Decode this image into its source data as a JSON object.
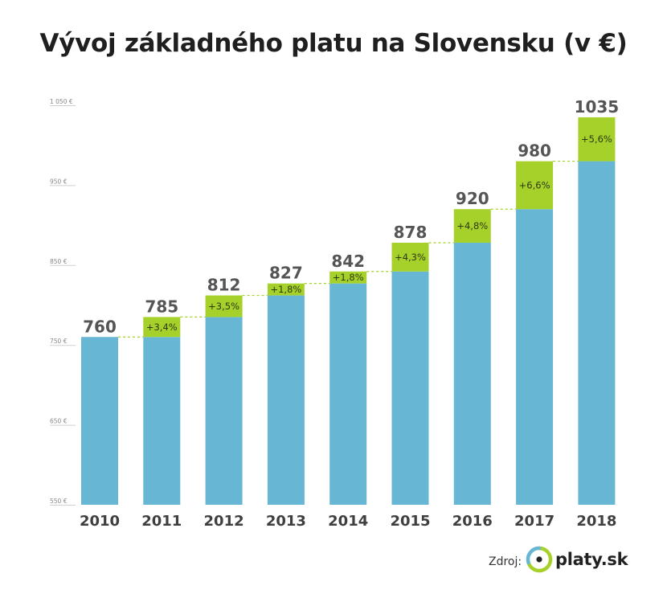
{
  "title": "Vývoj základného platu na Slovensku (v €)",
  "chart_data": {
    "type": "bar",
    "categories": [
      "2010",
      "2011",
      "2012",
      "2013",
      "2014",
      "2015",
      "2016",
      "2017",
      "2018"
    ],
    "values": [
      760,
      785,
      812,
      827,
      842,
      878,
      920,
      980,
      1035
    ],
    "value_labels": [
      "760",
      "785",
      "812",
      "827",
      "842",
      "878",
      "920",
      "980",
      "1035"
    ],
    "growth_labels": [
      "",
      "+3,4%",
      "+3,5%",
      "+1,8%",
      "+1,8%",
      "+4,3%",
      "+4,8%",
      "+6,6%",
      "+5,6%"
    ],
    "ylim": [
      550,
      1050
    ],
    "yticks": [
      550,
      650,
      750,
      850,
      950,
      1050
    ],
    "ytick_labels": [
      "550 €",
      "650 €",
      "750 €",
      "850 €",
      "950 €",
      "1 050 €"
    ],
    "colors": {
      "base": "#67b6d4",
      "increase": "#a6d12a",
      "connector": "#a6d12a",
      "value_text": "#555555",
      "year_text": "#3f3f3f",
      "tick_text": "#888888"
    },
    "grid": false
  },
  "source": {
    "label": "Zdroj:",
    "logo_text": "platy.sk"
  }
}
